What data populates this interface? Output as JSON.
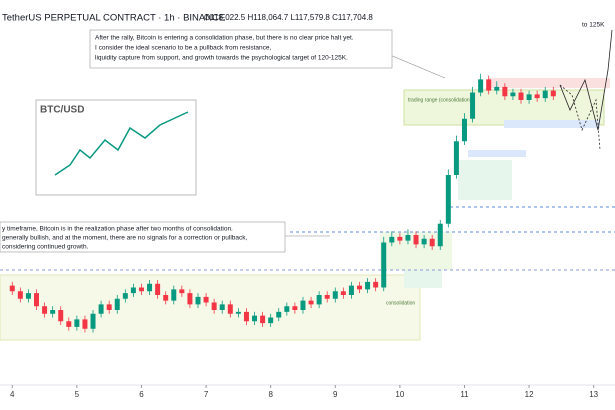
{
  "header": {
    "symbol": "TetherUS PERPETUAL CONTRACT · 1h · BINANCE",
    "ohlc": "O118,022.5 H118,064.7 L117,579.8 C117,704.8"
  },
  "annotations": {
    "top_note": [
      "After the rally, Bitcoin is entering a consolidation phase, but there is no clear price halt yet.",
      "I consider the ideal scenario to be a pullback from resistance,",
      "liquidity capture from support, and growth towards the psychological target of 120-125K."
    ],
    "left_note": [
      "y timeframe, Bitcoin is in the realization phase after two months of consolidation.",
      "generally bullish, and at the moment, there are no signals for a correction or pullback,",
      "considering continued growth."
    ],
    "target": "to 125K",
    "inset_title": "BTC/USD",
    "range_label": "trading range (consolidation)",
    "consolidation_label": "consolidation"
  },
  "chart_data": {
    "type": "candlestick",
    "up_color": "#089981",
    "down_color": "#f23645",
    "xlim": [
      3.81,
      13.33
    ],
    "xticks": [
      4,
      5,
      6,
      7,
      8,
      9,
      10,
      11,
      12,
      13
    ],
    "ylim": [
      103000,
      123000
    ],
    "x": [
      4,
      4.125,
      4.25,
      4.375,
      4.5,
      4.625,
      4.75,
      4.875,
      5,
      5.125,
      5.25,
      5.375,
      5.5,
      5.625,
      5.75,
      5.875,
      6,
      6.125,
      6.25,
      6.375,
      6.5,
      6.625,
      6.75,
      6.875,
      7,
      7.125,
      7.25,
      7.375,
      7.5,
      7.625,
      7.75,
      7.875,
      8,
      8.125,
      8.25,
      8.375,
      8.5,
      8.625,
      8.75,
      8.875,
      9,
      9.125,
      9.25,
      9.375,
      9.5,
      9.625,
      9.75,
      9.875,
      10,
      10.125,
      10.25,
      10.375,
      10.5,
      10.625,
      10.75,
      10.875,
      11,
      11.125,
      11.25,
      11.375,
      11.5,
      11.625,
      11.75,
      11.875,
      12,
      12.125,
      12.25,
      12.375
    ],
    "open": [
      108300,
      108000,
      107600,
      107900,
      107200,
      106800,
      107000,
      106400,
      106100,
      106500,
      106000,
      106800,
      107300,
      107000,
      107600,
      107900,
      108200,
      108000,
      108400,
      107800,
      107500,
      108100,
      107900,
      107300,
      107700,
      107400,
      107000,
      107300,
      106800,
      106900,
      106400,
      106700,
      106300,
      106600,
      106900,
      107200,
      107000,
      107500,
      107300,
      107800,
      107600,
      108000,
      107800,
      108300,
      108100,
      108500,
      108200,
      110600,
      110900,
      110700,
      111000,
      110500,
      110800,
      110400,
      111600,
      114200,
      116000,
      117200,
      118600,
      119300,
      118700,
      118900,
      118400,
      118600,
      118200,
      118500,
      118300,
      118700
    ],
    "high": [
      108500,
      108200,
      108100,
      108100,
      107400,
      107200,
      107200,
      106600,
      106700,
      106700,
      107000,
      107500,
      107500,
      107800,
      108100,
      108400,
      108400,
      108600,
      108600,
      108000,
      108300,
      108300,
      108100,
      107900,
      107900,
      107600,
      107500,
      107500,
      107100,
      107100,
      106900,
      106900,
      106800,
      107100,
      107400,
      107400,
      107700,
      107700,
      108000,
      108000,
      108200,
      108200,
      108500,
      108500,
      108700,
      108700,
      110900,
      111200,
      111100,
      111300,
      111200,
      111000,
      111000,
      111800,
      114500,
      116300,
      117500,
      118900,
      119600,
      119500,
      119200,
      119100,
      118800,
      118800,
      118700,
      118700,
      118900,
      118900
    ],
    "low": [
      107800,
      107400,
      107400,
      107000,
      106600,
      106600,
      106200,
      105900,
      105900,
      105800,
      105800,
      106600,
      106800,
      106800,
      107400,
      107700,
      107800,
      107800,
      107600,
      107300,
      107300,
      107700,
      107100,
      107100,
      107200,
      106800,
      106800,
      106600,
      106600,
      106200,
      106200,
      106100,
      106100,
      106400,
      106700,
      106800,
      106800,
      107100,
      107100,
      107400,
      107400,
      107600,
      107600,
      107900,
      107900,
      108000,
      108000,
      110400,
      110500,
      110500,
      110300,
      110300,
      110200,
      110200,
      111400,
      114000,
      115800,
      117000,
      118400,
      118500,
      118500,
      118200,
      118200,
      118000,
      118000,
      118100,
      118100,
      118200
    ],
    "close": [
      108000,
      107600,
      107900,
      107200,
      106800,
      107000,
      106400,
      106100,
      106500,
      106000,
      106800,
      107300,
      107000,
      107600,
      107900,
      108200,
      108000,
      108400,
      107800,
      107500,
      108100,
      107900,
      107300,
      107700,
      107400,
      107000,
      107300,
      106800,
      106900,
      106400,
      106700,
      106300,
      106600,
      106900,
      107200,
      107000,
      107500,
      107300,
      107800,
      107600,
      108000,
      107800,
      108300,
      108100,
      108500,
      108200,
      110600,
      110900,
      110700,
      111000,
      110500,
      110800,
      110400,
      111600,
      114200,
      116000,
      117200,
      118600,
      119300,
      118700,
      118900,
      118400,
      118600,
      118200,
      118500,
      118300,
      118700,
      118400
    ]
  }
}
